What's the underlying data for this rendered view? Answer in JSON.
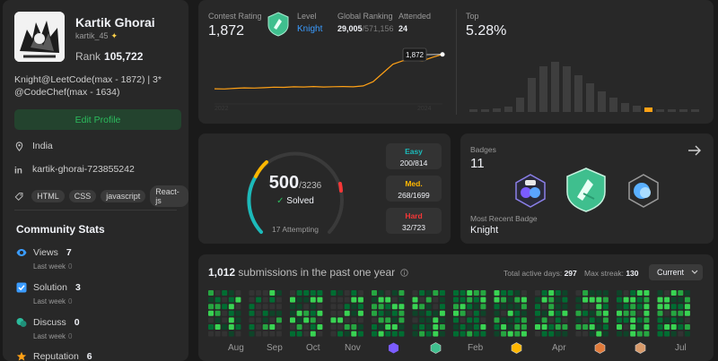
{
  "profile": {
    "name": "Kartik Ghorai",
    "handle": "kartik_45",
    "rank_label": "Rank",
    "rank_value": "105,722",
    "bio_line1": "Knight@LeetCode(max - 1872) | 3*",
    "bio_line2": "@CodeChef(max - 1634)",
    "edit_button": "Edit Profile",
    "location": "India",
    "linkedin": "kartik-ghorai-723855242",
    "tags": [
      "HTML",
      "CSS",
      "javascript",
      "React-js"
    ]
  },
  "community": {
    "title": "Community Stats",
    "stats": [
      {
        "label": "Views",
        "value": "7",
        "sub_label": "Last week",
        "sub_value": "0",
        "icon": "eye-icon",
        "color": "#3b9cff"
      },
      {
        "label": "Solution",
        "value": "3",
        "sub_label": "Last week",
        "sub_value": "0",
        "icon": "checkbox-icon",
        "color": "#3b9cff"
      },
      {
        "label": "Discuss",
        "value": "0",
        "sub_label": "Last week",
        "sub_value": "0",
        "icon": "chat-icon",
        "color": "#2cbb9c"
      },
      {
        "label": "Reputation",
        "value": "6",
        "icon": "star-icon",
        "color": "#ffa116"
      }
    ]
  },
  "contest": {
    "rating_label": "Contest Rating",
    "rating_value": "1,872",
    "level_label": "Level",
    "level_value": "Knight",
    "global_label": "Global Ranking",
    "global_value": "29,005",
    "global_total": "/571,156",
    "attended_label": "Attended",
    "attended_value": "24",
    "top_label": "Top",
    "top_value": "5.28%",
    "tooltip": "1,872",
    "x_start": "2022",
    "x_end": "2024",
    "accent": "#ffa116"
  },
  "chart_data": [
    {
      "type": "line",
      "title": "Contest Rating",
      "x_start_label": "2022",
      "x_end_label": "2024",
      "values": [
        1480,
        1478,
        1485,
        1490,
        1488,
        1492,
        1498,
        1496,
        1502,
        1500,
        1505,
        1500,
        1503,
        1505,
        1502,
        1512,
        1560,
        1660,
        1760,
        1800,
        1810,
        1800,
        1840,
        1872
      ],
      "ylim": [
        1450,
        1900
      ]
    },
    {
      "type": "bar",
      "title": "Top",
      "values": [
        3,
        3,
        4,
        6,
        16,
        38,
        51,
        56,
        51,
        41,
        32,
        23,
        16,
        10,
        7,
        5,
        3,
        2,
        2,
        2
      ],
      "highlight_index": 15,
      "ylim": [
        0,
        60
      ]
    }
  ],
  "solved": {
    "count": "500",
    "total": "/3236",
    "solved_label": "Solved",
    "attempting": "17 Attempting",
    "check": "✓",
    "easy_label": "Easy",
    "easy_value": "200/814",
    "easy_color": "#1cbaba",
    "med_label": "Med.",
    "med_value": "268/1699",
    "med_color": "#ffb700",
    "hard_label": "Hard",
    "hard_value": "32/723",
    "hard_color": "#f63737"
  },
  "badges": {
    "title": "Badges",
    "count": "11",
    "recent_label": "Most Recent Badge",
    "recent_value": "Knight"
  },
  "submissions": {
    "count": "1,012",
    "text": "submissions in the past one year",
    "active_label": "Total active days:",
    "active_value": "297",
    "streak_label": "Max streak:",
    "streak_value": "130",
    "dropdown": "Current",
    "months": [
      "Aug",
      "Sep",
      "Oct",
      "Nov",
      "",
      "",
      "Feb",
      "",
      "Apr",
      "",
      "Jul"
    ]
  }
}
